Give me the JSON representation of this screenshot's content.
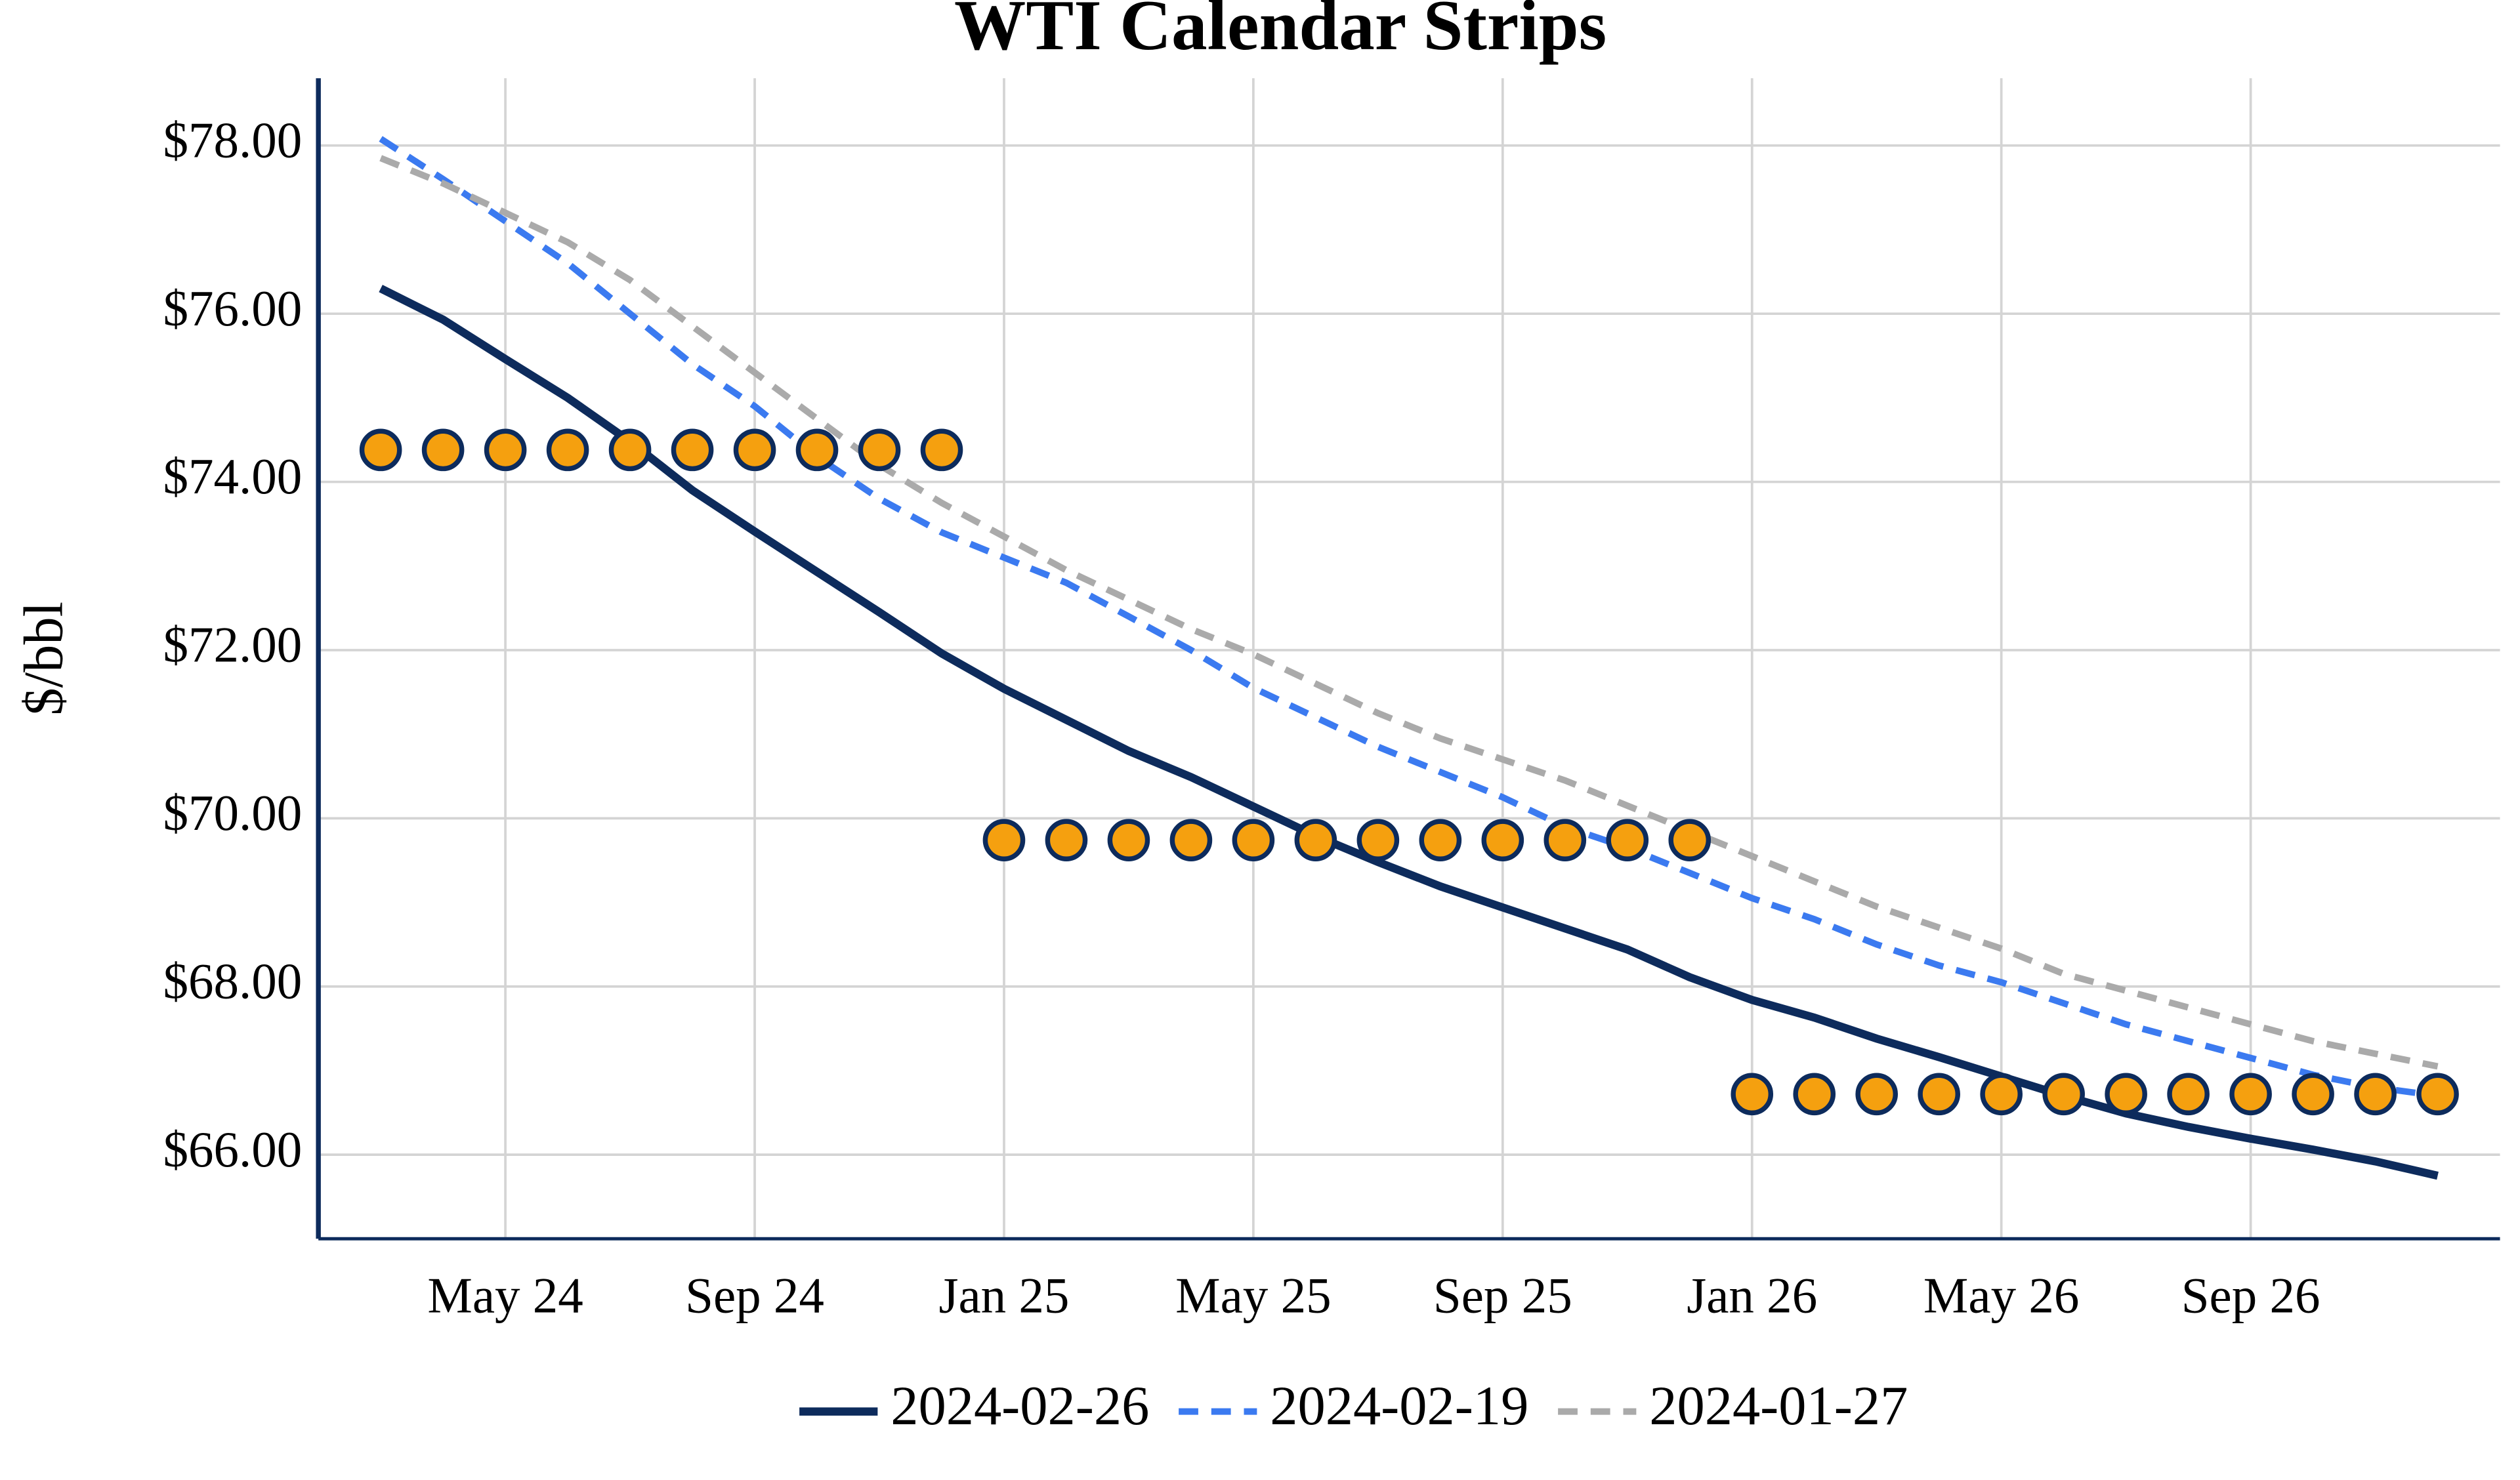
{
  "chart_data": {
    "type": "line",
    "title": "WTI Calendar Strips",
    "y_label": "$/bbl",
    "x": [
      "2024-03",
      "2024-04",
      "2024-05",
      "2024-06",
      "2024-07",
      "2024-08",
      "2024-09",
      "2024-10",
      "2024-11",
      "2024-12",
      "2025-01",
      "2025-02",
      "2025-03",
      "2025-04",
      "2025-05",
      "2025-06",
      "2025-07",
      "2025-08",
      "2025-09",
      "2025-10",
      "2025-11",
      "2025-12",
      "2026-01",
      "2026-02",
      "2026-03",
      "2026-04",
      "2026-05",
      "2026-06",
      "2026-07",
      "2026-08",
      "2026-09",
      "2026-10",
      "2026-11",
      "2026-12"
    ],
    "series": [
      {
        "name": "2024-02-26",
        "color": "#0d2b5c",
        "dash": "solid",
        "values": [
          76.3,
          75.93,
          75.46,
          75.0,
          74.48,
          73.9,
          73.41,
          72.93,
          72.45,
          71.96,
          71.54,
          71.17,
          70.8,
          70.49,
          70.14,
          69.79,
          69.48,
          69.19,
          68.94,
          68.69,
          68.44,
          68.11,
          67.84,
          67.63,
          67.38,
          67.16,
          66.93,
          66.7,
          66.49,
          66.33,
          66.19,
          66.06,
          65.92,
          65.75
        ]
      },
      {
        "name": "2024-02-19",
        "color": "#3b7af0",
        "dash": "dashed",
        "values": [
          78.08,
          77.6,
          77.1,
          76.6,
          76.0,
          75.4,
          74.9,
          74.3,
          73.8,
          73.4,
          73.1,
          72.8,
          72.4,
          72.0,
          71.55,
          71.2,
          70.85,
          70.55,
          70.25,
          69.9,
          69.65,
          69.35,
          69.05,
          68.8,
          68.5,
          68.25,
          68.05,
          67.8,
          67.55,
          67.35,
          67.15,
          66.95,
          66.8,
          66.7
        ]
      },
      {
        "name": "2024-01-27",
        "color": "#aaaaaa",
        "dash": "dashed",
        "values": [
          77.85,
          77.55,
          77.2,
          76.85,
          76.4,
          75.85,
          75.3,
          74.75,
          74.2,
          73.75,
          73.35,
          72.95,
          72.6,
          72.25,
          71.95,
          71.6,
          71.25,
          70.95,
          70.7,
          70.45,
          70.15,
          69.85,
          69.55,
          69.25,
          68.95,
          68.7,
          68.45,
          68.15,
          67.95,
          67.75,
          67.55,
          67.35,
          67.2,
          67.05
        ]
      },
      {
        "type": "scatter",
        "color": "#f5a00f",
        "edge": "#0d2b5c",
        "x": [
          "2024-03",
          "2024-04",
          "2024-05",
          "2024-06",
          "2024-07",
          "2024-08",
          "2024-09",
          "2024-10",
          "2024-11",
          "2024-12",
          "2025-01",
          "2025-02",
          "2025-03",
          "2025-04",
          "2025-05",
          "2025-06",
          "2025-07",
          "2025-08",
          "2025-09",
          "2025-10",
          "2025-11",
          "2025-12",
          "2026-01",
          "2026-02",
          "2026-03",
          "2026-04",
          "2026-05",
          "2026-06",
          "2026-07",
          "2026-08",
          "2026-09",
          "2026-10",
          "2026-11",
          "2026-12"
        ],
        "values": [
          74.38,
          74.38,
          74.38,
          74.38,
          74.38,
          74.38,
          74.38,
          74.38,
          74.38,
          74.38,
          69.74,
          69.74,
          69.74,
          69.74,
          69.74,
          69.74,
          69.74,
          69.74,
          69.74,
          69.74,
          69.74,
          69.74,
          66.72,
          66.72,
          66.72,
          66.72,
          66.72,
          66.72,
          66.72,
          66.72,
          66.72,
          66.72,
          66.72,
          66.72
        ]
      }
    ],
    "xlim": [
      "2024-02",
      "2027-01"
    ],
    "xticks": [
      {
        "value": "2024-05",
        "label": "May 24"
      },
      {
        "value": "2024-09",
        "label": "Sep 24"
      },
      {
        "value": "2025-01",
        "label": "Jan 25"
      },
      {
        "value": "2025-05",
        "label": "May 25"
      },
      {
        "value": "2025-09",
        "label": "Sep 25"
      },
      {
        "value": "2026-01",
        "label": "Jan 26"
      },
      {
        "value": "2026-05",
        "label": "May 26"
      },
      {
        "value": "2026-09",
        "label": "Sep 26"
      }
    ],
    "ylim": [
      65,
      78.8
    ],
    "yticks": [
      {
        "value": 66,
        "label": "$66.00"
      },
      {
        "value": 68,
        "label": "$68.00"
      },
      {
        "value": 70,
        "label": "$70.00"
      },
      {
        "value": 72,
        "label": "$72.00"
      },
      {
        "value": 74,
        "label": "$74.00"
      },
      {
        "value": 76,
        "label": "$76.00"
      },
      {
        "value": 78,
        "label": "$78.00"
      }
    ],
    "grid": true,
    "legend": "bottom"
  }
}
